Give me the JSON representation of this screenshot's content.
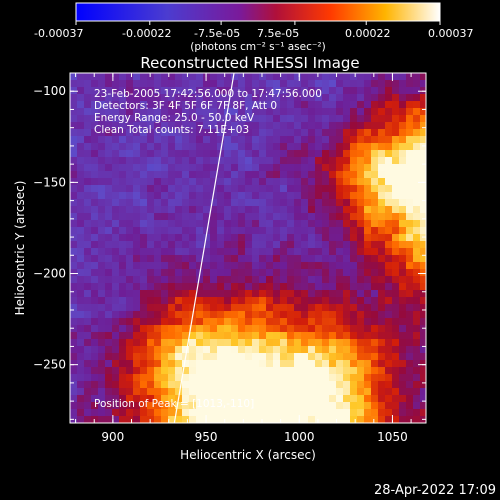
{
  "colorbar": {
    "tick_labels": [
      "-0.00037",
      "-0.00022",
      "-7.5e-05",
      "7.5e-05",
      "0.00022",
      "0.00037"
    ],
    "unit_label": "(photons cm⁻² s⁻¹ asec⁻²)",
    "range": [
      -0.00037,
      0.00037
    ]
  },
  "chart_data": {
    "type": "heatmap",
    "title": "Reconstructed RHESSI Image",
    "xlabel": "Heliocentric X (arcsec)",
    "ylabel": "Heliocentric Y (arcsec)",
    "xlim": [
      877,
      1068
    ],
    "ylim": [
      -282,
      -90
    ],
    "xticks": [
      900,
      950,
      1000,
      1050
    ],
    "yticks": [
      -100,
      -150,
      -200,
      -250
    ],
    "colormap": "blue-purple-red-yellow-white",
    "info_lines": [
      "23-Feb-2005 17:42:56.000 to 17:47:56.000",
      "Detectors: 3F 4F 5F 6F 7F 8F, Att 0",
      "Energy Range: 25.0 - 50.0 keV",
      "Clean      Total counts: 7.11E+03"
    ],
    "peak_label": "Position of Peak = [1013,-110]",
    "limb_line": {
      "points": [
        [
          933,
          -282
        ],
        [
          965,
          -90
        ]
      ]
    },
    "grid": false
  },
  "footer": {
    "timestamp": "28-Apr-2022 17:09"
  }
}
